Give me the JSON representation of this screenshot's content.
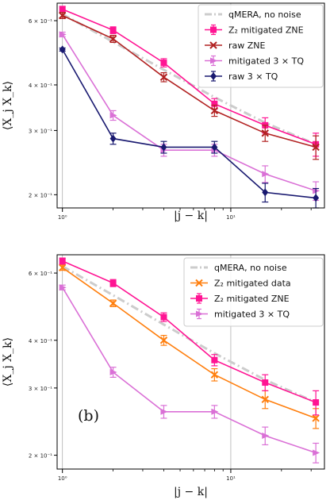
{
  "colors": {
    "qmera": "#cccccc",
    "z2_zne": "#ff1493",
    "raw_zne": "#b22222",
    "mit3tq": "#da70d6",
    "raw3tq": "#191970",
    "z2_data": "#ff7f0e",
    "axis": "#000000",
    "grid": "#b0b0b0",
    "legend_border": "#cccccc"
  },
  "chart_data": [
    {
      "type": "line",
      "xscale": "log",
      "yscale": "log",
      "xlim": [
        0.93,
        36
      ],
      "ylim": [
        0.184,
        0.67
      ],
      "xlabel": "|j − k|",
      "ylabel": "⟨X_j X_k⟩",
      "x_ticks": [
        {
          "value": 1,
          "label": "10⁰"
        },
        {
          "value": 10,
          "label": "10¹"
        }
      ],
      "y_ticks": [
        {
          "value": 0.6,
          "label": "6 × 10⁻¹"
        },
        {
          "value": 0.4,
          "label": "4 × 10⁻¹"
        },
        {
          "value": 0.3,
          "label": "3 × 10⁻¹"
        },
        {
          "value": 0.2,
          "label": "2 × 10⁻¹"
        }
      ],
      "grid": "vertical-major",
      "legend_position": "top-right",
      "series": [
        {
          "name": "qMERA, no noise",
          "style": "dashdot",
          "marker": "none",
          "color_key": "qmera",
          "x": [
            1,
            2,
            4,
            8,
            16,
            32
          ],
          "y": [
            0.625,
            0.525,
            0.44,
            0.37,
            0.315,
            0.275
          ],
          "err": [
            0,
            0,
            0,
            0,
            0,
            0
          ]
        },
        {
          "name": "Z₂ mitigated ZNE",
          "style": "solid",
          "marker": "square",
          "color_key": "z2_zne",
          "x": [
            1,
            2,
            4,
            8,
            16,
            32
          ],
          "y": [
            0.645,
            0.565,
            0.46,
            0.355,
            0.31,
            0.275
          ],
          "err": [
            0.012,
            0.012,
            0.012,
            0.012,
            0.015,
            0.02
          ]
        },
        {
          "name": "raw ZNE",
          "style": "solid",
          "marker": "x",
          "color_key": "raw_zne",
          "x": [
            1,
            2,
            4,
            8,
            16,
            32
          ],
          "y": [
            0.62,
            0.535,
            0.42,
            0.34,
            0.295,
            0.27
          ],
          "err": [
            0.012,
            0.012,
            0.012,
            0.012,
            0.015,
            0.02
          ]
        },
        {
          "name": "mitigated 3 × TQ",
          "style": "solid",
          "marker": "triangle-right",
          "color_key": "mit3tq",
          "x": [
            1,
            2,
            4,
            8,
            16,
            32
          ],
          "y": [
            0.55,
            0.33,
            0.265,
            0.265,
            0.228,
            0.205
          ],
          "err": [
            0.008,
            0.01,
            0.01,
            0.01,
            0.012,
            0.012
          ]
        },
        {
          "name": "raw 3 × TQ",
          "style": "solid",
          "marker": "diamond",
          "color_key": "raw3tq",
          "x": [
            1,
            2,
            4,
            8,
            16,
            32
          ],
          "y": [
            0.5,
            0.285,
            0.27,
            0.27,
            0.203,
            0.196
          ],
          "err": [
            0.005,
            0.01,
            0.01,
            0.01,
            0.012,
            0.012
          ]
        }
      ]
    },
    {
      "type": "line",
      "xscale": "log",
      "yscale": "log",
      "xlim": [
        0.93,
        36
      ],
      "ylim": [
        0.184,
        0.67
      ],
      "xlabel": "|j − k|",
      "ylabel": "⟨X_j X_k⟩",
      "annotation": "(b)",
      "x_ticks": [
        {
          "value": 1,
          "label": "10⁰"
        },
        {
          "value": 10,
          "label": "10¹"
        }
      ],
      "y_ticks": [
        {
          "value": 0.6,
          "label": "6 × 10⁻¹"
        },
        {
          "value": 0.4,
          "label": "4 × 10⁻¹"
        },
        {
          "value": 0.3,
          "label": "3 × 10⁻¹"
        },
        {
          "value": 0.2,
          "label": "2 × 10⁻¹"
        }
      ],
      "grid": "vertical-major",
      "legend_position": "top-right",
      "series": [
        {
          "name": "qMERA, no noise",
          "style": "dashdot",
          "marker": "none",
          "color_key": "qmera",
          "x": [
            1,
            2,
            4,
            8,
            16,
            32
          ],
          "y": [
            0.625,
            0.525,
            0.44,
            0.37,
            0.315,
            0.275
          ],
          "err": [
            0,
            0,
            0,
            0,
            0,
            0
          ]
        },
        {
          "name": "Z₂ mitigated data",
          "style": "solid",
          "marker": "x",
          "color_key": "z2_data",
          "x": [
            1,
            2,
            4,
            8,
            16,
            32
          ],
          "y": [
            0.62,
            0.5,
            0.4,
            0.325,
            0.28,
            0.25
          ],
          "err": [
            0.01,
            0.01,
            0.012,
            0.012,
            0.015,
            0.015
          ]
        },
        {
          "name": "Z₂ mitigated ZNE",
          "style": "solid",
          "marker": "square",
          "color_key": "z2_zne",
          "x": [
            1,
            2,
            4,
            8,
            16,
            32
          ],
          "y": [
            0.645,
            0.565,
            0.46,
            0.355,
            0.31,
            0.275
          ],
          "err": [
            0.012,
            0.012,
            0.012,
            0.012,
            0.015,
            0.02
          ]
        },
        {
          "name": "mitigated 3 × TQ",
          "style": "solid",
          "marker": "triangle-right",
          "color_key": "mit3tq",
          "x": [
            1,
            2,
            4,
            8,
            16,
            32
          ],
          "y": [
            0.55,
            0.33,
            0.26,
            0.26,
            0.225,
            0.203
          ],
          "err": [
            0.008,
            0.01,
            0.01,
            0.01,
            0.012,
            0.012
          ]
        }
      ]
    }
  ]
}
